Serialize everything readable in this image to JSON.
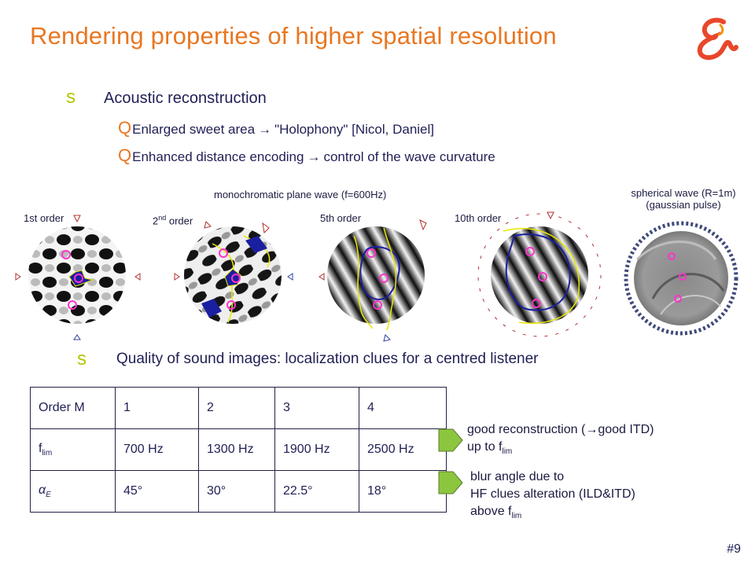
{
  "slide": {
    "title": "Rendering properties of higher spatial resolution",
    "page_number": "#9",
    "bullet_glyph": "s",
    "sub_bullet_glyph": "Q",
    "bullet1": "Acoustic reconstruction",
    "sub1": {
      "before": "Enlarged sweet area",
      "after": "\"Holophony\" [Nicol, Daniel]"
    },
    "sub2": {
      "before": "Enhanced distance encoding",
      "after": "control of the wave curvature"
    },
    "bullet2": "Quality of sound images: localization clues for a centred listener"
  },
  "figures": {
    "plane_wave_caption": "monochromatic plane wave (f=600Hz)",
    "spherical_caption_line1": "spherical wave (R=1m)",
    "spherical_caption_line2": "(gaussian pulse)",
    "orders": [
      {
        "label": "1st order"
      },
      {
        "label": "2",
        "sup": "nd",
        "rest": " order"
      },
      {
        "label": "5th order"
      },
      {
        "label": "10th order"
      }
    ]
  },
  "table": {
    "rows": [
      {
        "header": "Order M",
        "values": [
          "1",
          "2",
          "3",
          "4"
        ]
      },
      {
        "header_main": "f",
        "header_sub": "lim",
        "values": [
          "700 Hz",
          "1300 Hz",
          "1900 Hz",
          "2500 Hz"
        ]
      },
      {
        "header_main": "α",
        "header_sub": "E",
        "values": [
          "45°",
          "30°",
          "22.5°",
          "18°"
        ]
      }
    ]
  },
  "notes": {
    "note1_line1_before": "good reconstruction (",
    "note1_line1_after": "good ITD)",
    "note1_line2_before": "up to f",
    "note1_line2_sub": "lim",
    "note2_line1": "blur angle due to",
    "note2_line2": "HF clues alteration (ILD&ITD)",
    "note2_line3_before": "above f",
    "note2_line3_sub": "lim"
  },
  "colors": {
    "title": "#e87722",
    "bullet": "#b5c600",
    "text": "#1f1f55",
    "pointer_fill": "#8cc63f",
    "logo": "#e8472b"
  }
}
